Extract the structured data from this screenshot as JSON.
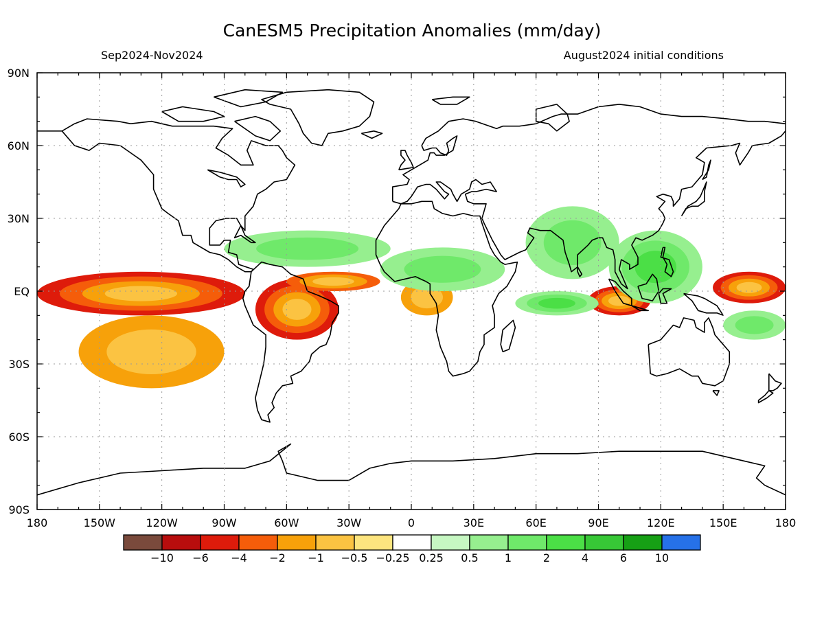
{
  "title": "CanESM5 Precipitation Anomalies (mm/day)",
  "period": "Sep2024-Nov2024",
  "initial_conditions": "August2024 initial conditions",
  "lat_labels": [
    "90N",
    "60N",
    "30N",
    "EQ",
    "30S",
    "60S",
    "90S"
  ],
  "lon_labels": [
    "180",
    "150W",
    "120W",
    "90W",
    "60W",
    "30W",
    "0",
    "30E",
    "60E",
    "90E",
    "120E",
    "150E",
    "180"
  ],
  "legend": {
    "colors": [
      "#7a4a3c",
      "#b80d0d",
      "#de1b0b",
      "#f55d0a",
      "#f7a10a",
      "#fbc342",
      "#fde57f",
      "#ffffff",
      "#c6f7c2",
      "#96ef8f",
      "#6fe96a",
      "#4bdf46",
      "#37c836",
      "#16a015",
      "#2671e8"
    ],
    "labels": [
      "−10",
      "−6",
      "−4",
      "−2",
      "−1",
      "−0.5",
      "−0.25",
      "0.25",
      "0.5",
      "1",
      "2",
      "4",
      "6",
      "10"
    ]
  },
  "chart_data": {
    "type": "heatmap",
    "variable": "Precipitation Anomalies",
    "units": "mm/day",
    "lon_range": [
      -180,
      180
    ],
    "lat_range": [
      -90,
      90
    ],
    "levels": [
      -10,
      -6,
      -4,
      -2,
      -1,
      -0.5,
      -0.25,
      0.25,
      0.5,
      1,
      2,
      4,
      6,
      10
    ],
    "grid": true,
    "anomaly_regions": [
      {
        "region": "central/eastern equatorial Pacific",
        "lon": [
          -180,
          -80
        ],
        "lat": [
          -10,
          8
        ],
        "level": -4
      },
      {
        "region": "southeast Pacific diagonal band",
        "lon": [
          -160,
          -90
        ],
        "lat": [
          -40,
          -10
        ],
        "level": -1
      },
      {
        "region": "eastern Amazon / NE Brazil",
        "lon": [
          -75,
          -35
        ],
        "lat": [
          -20,
          5
        ],
        "level": -4
      },
      {
        "region": "western equatorial Atlantic",
        "lon": [
          -60,
          -15
        ],
        "lat": [
          0,
          8
        ],
        "level": -2
      },
      {
        "region": "Gulf of Guinea / Congo coast",
        "lon": [
          -5,
          20
        ],
        "lat": [
          -10,
          5
        ],
        "level": -1
      },
      {
        "region": "eastern Indian Ocean / Sumatra-Java",
        "lon": [
          85,
          115
        ],
        "lat": [
          -10,
          2
        ],
        "level": -4
      },
      {
        "region": "western equatorial Pacific",
        "lon": [
          145,
          180
        ],
        "lat": [
          -5,
          8
        ],
        "level": -4
      },
      {
        "region": "Caribbean / tropical North Atlantic",
        "lon": [
          -90,
          -10
        ],
        "lat": [
          10,
          25
        ],
        "level": 1
      },
      {
        "region": "Sahel / Central Africa",
        "lon": [
          -15,
          45
        ],
        "lat": [
          0,
          18
        ],
        "level": 1
      },
      {
        "region": "Arabian Sea / India / Bay of Bengal",
        "lon": [
          55,
          100
        ],
        "lat": [
          5,
          35
        ],
        "level": 1
      },
      {
        "region": "Maritime Continent / South China Sea",
        "lon": [
          95,
          140
        ],
        "lat": [
          -5,
          25
        ],
        "level": 2
      },
      {
        "region": "central Indian Ocean",
        "lon": [
          50,
          90
        ],
        "lat": [
          -10,
          0
        ],
        "level": 2
      },
      {
        "region": "South Pacific Convergence Zone",
        "lon": [
          150,
          180
        ],
        "lat": [
          -20,
          -8
        ],
        "level": 1
      }
    ]
  }
}
